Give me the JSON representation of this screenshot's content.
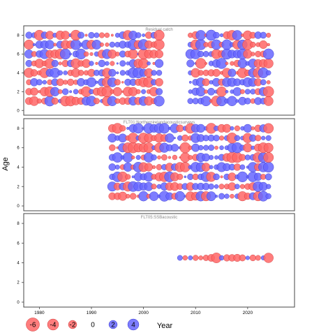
{
  "chart_data": {
    "type": "scatter",
    "subtype": "bubble-residuals",
    "ylabel": "Age",
    "xlabel": "Year",
    "xlim": [
      1977,
      2029
    ],
    "x_ticks": [
      1980,
      1990,
      2000,
      2010,
      2020
    ],
    "colors": {
      "positive": "#6666ff",
      "negative": "#ff6666",
      "edge_positive": "#3333cc",
      "edge_negative": "#cc3333"
    },
    "panels": [
      {
        "title": "Residual catch",
        "ylim": [
          -0.5,
          9
        ],
        "y_ticks": [
          0,
          2,
          4,
          6,
          8
        ],
        "years": [
          1978,
          2024
        ],
        "ages": [
          1,
          2,
          3,
          4,
          5,
          6,
          7,
          8
        ],
        "gap": [
          2004,
          2008
        ],
        "seed": 11
      },
      {
        "title": "FLT01:Northernirelandacousticsurveys",
        "ylim": [
          -0.5,
          9
        ],
        "y_ticks": [
          0,
          2,
          4,
          6,
          8
        ],
        "years": [
          1994,
          2024
        ],
        "ages": [
          1,
          2,
          3,
          4,
          5,
          6,
          7,
          8
        ],
        "gap": null,
        "seed": 29
      },
      {
        "title": "FLT05:SSBacoustic",
        "ylim": [
          -0.5,
          9
        ],
        "y_ticks": [
          0,
          2,
          4,
          6,
          8
        ],
        "points": [
          [
            2007,
            4.5,
            0.5
          ],
          [
            2008,
            4.5,
            -0.4
          ],
          [
            2009,
            4.5,
            0.3
          ],
          [
            2010,
            4.5,
            -0.6
          ],
          [
            2011,
            4.5,
            -0.3
          ],
          [
            2012,
            4.5,
            -0.7
          ],
          [
            2013,
            4.5,
            -1.2
          ],
          [
            2014,
            4.5,
            -2.8
          ],
          [
            2015,
            4.5,
            0.4
          ],
          [
            2016,
            4.5,
            -1.0
          ],
          [
            2017,
            4.5,
            -1.1
          ],
          [
            2018,
            4.5,
            -1.3
          ],
          [
            2019,
            4.5,
            -0.9
          ],
          [
            2020,
            4.5,
            0.2
          ],
          [
            2021,
            4.5,
            -0.8
          ],
          [
            2022,
            4.5,
            -0.5
          ],
          [
            2023,
            4.5,
            0.3
          ],
          [
            2024,
            4.5,
            -2.6
          ]
        ]
      }
    ],
    "legend": {
      "values": [
        -6,
        -4,
        -2,
        0,
        2,
        4
      ],
      "labels": [
        "-6",
        "-4",
        "-2",
        "0",
        "2",
        "4"
      ]
    }
  }
}
